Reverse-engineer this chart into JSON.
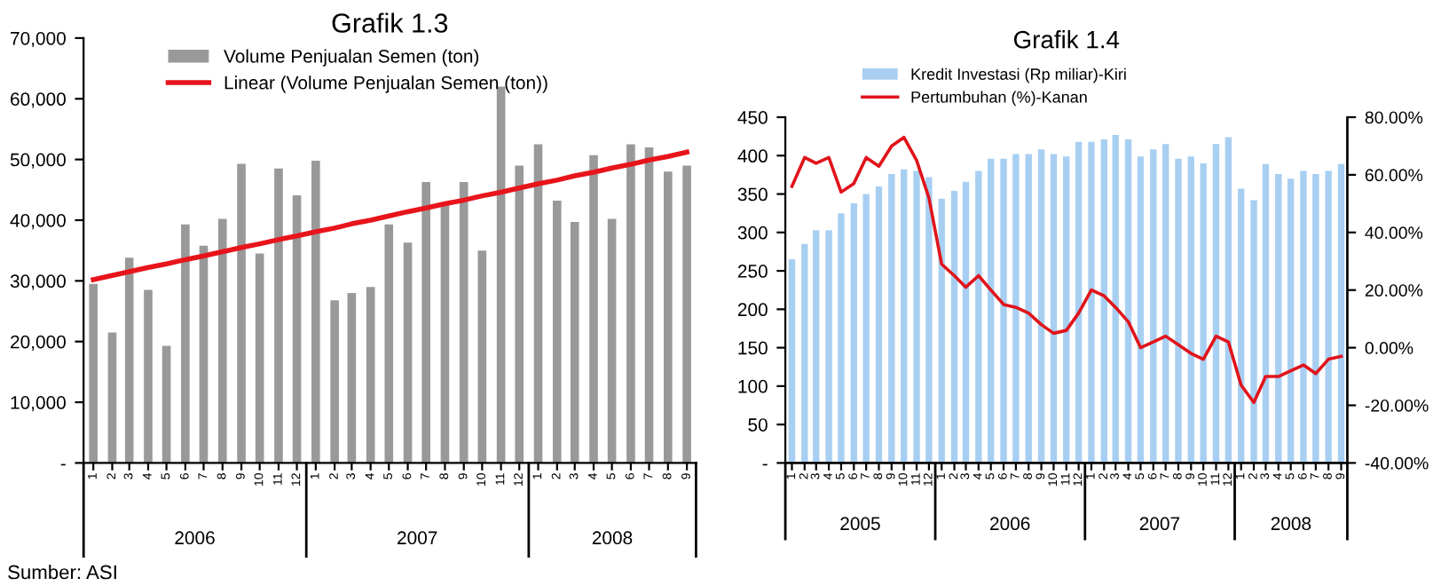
{
  "chart_data": [
    {
      "type": "bar",
      "title": "Grafik 1.3",
      "x": [
        "2006-01",
        "2006-02",
        "2006-03",
        "2006-04",
        "2006-05",
        "2006-06",
        "2006-07",
        "2006-08",
        "2006-09",
        "2006-10",
        "2006-11",
        "2006-12",
        "2007-01",
        "2007-02",
        "2007-03",
        "2007-04",
        "2007-05",
        "2007-06",
        "2007-07",
        "2007-08",
        "2007-09",
        "2007-10",
        "2007-11",
        "2007-12",
        "2008-01",
        "2008-02",
        "2008-03",
        "2008-04",
        "2008-05",
        "2008-06",
        "2008-07",
        "2008-08",
        "2008-09"
      ],
      "xlim": [
        "2005-12-16",
        "2008-09-16"
      ],
      "xticks": [
        {
          "value": "2006-01",
          "label": "1"
        },
        {
          "value": "2006-02",
          "label": "2"
        },
        {
          "value": "2006-03",
          "label": "3"
        },
        {
          "value": "2006-04",
          "label": "4"
        },
        {
          "value": "2006-05",
          "label": "5"
        },
        {
          "value": "2006-06",
          "label": "6"
        },
        {
          "value": "2006-07",
          "label": "7"
        },
        {
          "value": "2006-08",
          "label": "8"
        },
        {
          "value": "2006-09",
          "label": "9"
        },
        {
          "value": "2006-10",
          "label": "10"
        },
        {
          "value": "2006-11",
          "label": "11"
        },
        {
          "value": "2006-12",
          "label": "12"
        },
        {
          "value": "2007-01",
          "label": "1"
        },
        {
          "value": "2007-02",
          "label": "2"
        },
        {
          "value": "2007-03",
          "label": "3"
        },
        {
          "value": "2007-04",
          "label": "4"
        },
        {
          "value": "2007-05",
          "label": "5"
        },
        {
          "value": "2007-06",
          "label": "6"
        },
        {
          "value": "2007-07",
          "label": "7"
        },
        {
          "value": "2007-08",
          "label": "8"
        },
        {
          "value": "2007-09",
          "label": "9"
        },
        {
          "value": "2007-10",
          "label": "10"
        },
        {
          "value": "2007-11",
          "label": "11"
        },
        {
          "value": "2007-12",
          "label": "12"
        },
        {
          "value": "2008-01",
          "label": "1"
        },
        {
          "value": "2008-02",
          "label": "2"
        },
        {
          "value": "2008-03",
          "label": "3"
        },
        {
          "value": "2008-04",
          "label": "4"
        },
        {
          "value": "2008-05",
          "label": "5"
        },
        {
          "value": "2008-06",
          "label": "6"
        },
        {
          "value": "2008-07",
          "label": "7"
        },
        {
          "value": "2008-08",
          "label": "8"
        },
        {
          "value": "2008-09",
          "label": "9"
        }
      ],
      "ylim": [
        0,
        70000
      ],
      "yticks": [
        {
          "value": 0,
          "label": "-"
        },
        {
          "value": 10000,
          "label": "10,000"
        },
        {
          "value": 20000,
          "label": "20,000"
        },
        {
          "value": 30000,
          "label": "30,000"
        },
        {
          "value": 40000,
          "label": "40,000"
        },
        {
          "value": 50000,
          "label": "50,000"
        },
        {
          "value": 60000,
          "label": "60,000"
        },
        {
          "value": 70000,
          "label": "70,000"
        }
      ],
      "legend": "top left",
      "series": [
        {
          "name": "Volume Penjualan Semen (ton)",
          "color": "#999999",
          "values": [
            29500,
            21500,
            33800,
            28500,
            19300,
            39300,
            35800,
            40200,
            49300,
            34500,
            48500,
            44100,
            49800,
            26800,
            28000,
            29000,
            39300,
            36300,
            46300,
            42500,
            46300,
            35000,
            62000,
            49000,
            52500,
            43200,
            39700,
            50700,
            40200,
            52500,
            52000,
            48000,
            49000
          ]
        },
        {
          "name": "Linear (Volume Penjualan Semen (ton))",
          "type": "line",
          "color": "#e8141b",
          "values": [
            30200,
            30900,
            31500,
            32200,
            32800,
            33500,
            34100,
            34800,
            35500,
            36100,
            36800,
            37400,
            38100,
            38700,
            39400,
            40000,
            40700,
            41400,
            42000,
            42700,
            43300,
            44000,
            44600,
            45300,
            46000,
            46600,
            47300,
            47900,
            48600,
            49200,
            49900,
            50500,
            51200
          ]
        }
      ],
      "annotations": [
        "2006",
        "2007",
        "2008",
        "Sumber: ASI"
      ]
    },
    {
      "type": "bar",
      "title": "Grafik 1.4",
      "x": [
        "2005-01",
        "2005-02",
        "2005-03",
        "2005-04",
        "2005-05",
        "2005-06",
        "2005-07",
        "2005-08",
        "2005-09",
        "2005-10",
        "2005-11",
        "2005-12",
        "2006-01",
        "2006-02",
        "2006-03",
        "2006-04",
        "2006-05",
        "2006-06",
        "2006-07",
        "2006-08",
        "2006-09",
        "2006-10",
        "2006-11",
        "2006-12",
        "2007-01",
        "2007-02",
        "2007-03",
        "2007-04",
        "2007-05",
        "2007-06",
        "2007-07",
        "2007-08",
        "2007-09",
        "2007-10",
        "2007-11",
        "2007-12",
        "2008-01",
        "2008-02",
        "2008-03",
        "2008-04",
        "2008-05",
        "2008-06",
        "2008-07",
        "2008-08",
        "2008-09"
      ],
      "xlim": [
        "2004-12-16",
        "2008-09-16"
      ],
      "xticks": [
        {
          "value": "2005-01",
          "label": "1"
        },
        {
          "value": "2005-02",
          "label": "2"
        },
        {
          "value": "2005-03",
          "label": "3"
        },
        {
          "value": "2005-04",
          "label": "4"
        },
        {
          "value": "2005-05",
          "label": "5"
        },
        {
          "value": "2005-06",
          "label": "6"
        },
        {
          "value": "2005-07",
          "label": "7"
        },
        {
          "value": "2005-08",
          "label": "8"
        },
        {
          "value": "2005-09",
          "label": "9"
        },
        {
          "value": "2005-10",
          "label": "10"
        },
        {
          "value": "2005-11",
          "label": "11"
        },
        {
          "value": "2005-12",
          "label": "12"
        },
        {
          "value": "2006-01",
          "label": "1"
        },
        {
          "value": "2006-02",
          "label": "2"
        },
        {
          "value": "2006-03",
          "label": "3"
        },
        {
          "value": "2006-04",
          "label": "4"
        },
        {
          "value": "2006-05",
          "label": "5"
        },
        {
          "value": "2006-06",
          "label": "6"
        },
        {
          "value": "2006-07",
          "label": "7"
        },
        {
          "value": "2006-08",
          "label": "8"
        },
        {
          "value": "2006-09",
          "label": "9"
        },
        {
          "value": "2006-10",
          "label": "10"
        },
        {
          "value": "2006-11",
          "label": "11"
        },
        {
          "value": "2006-12",
          "label": "12"
        },
        {
          "value": "2007-01",
          "label": "1"
        },
        {
          "value": "2007-02",
          "label": "2"
        },
        {
          "value": "2007-03",
          "label": "3"
        },
        {
          "value": "2007-04",
          "label": "4"
        },
        {
          "value": "2007-05",
          "label": "5"
        },
        {
          "value": "2007-06",
          "label": "6"
        },
        {
          "value": "2007-07",
          "label": "7"
        },
        {
          "value": "2007-08",
          "label": "8"
        },
        {
          "value": "2007-09",
          "label": "9"
        },
        {
          "value": "2007-10",
          "label": "10"
        },
        {
          "value": "2007-11",
          "label": "11"
        },
        {
          "value": "2007-12",
          "label": "12"
        },
        {
          "value": "2008-01",
          "label": "1"
        },
        {
          "value": "2008-02",
          "label": "2"
        },
        {
          "value": "2008-03",
          "label": "3"
        },
        {
          "value": "2008-04",
          "label": "4"
        },
        {
          "value": "2008-05",
          "label": "5"
        },
        {
          "value": "2008-06",
          "label": "6"
        },
        {
          "value": "2008-07",
          "label": "7"
        },
        {
          "value": "2008-08",
          "label": "8"
        },
        {
          "value": "2008-09",
          "label": "9"
        }
      ],
      "ylim": [
        0,
        450
      ],
      "yticks": [
        {
          "value": 0,
          "label": "-"
        },
        50,
        100,
        150,
        200,
        250,
        300,
        350,
        400,
        450
      ],
      "y2lim": [
        -40,
        80
      ],
      "y2ticks": [
        {
          "value": -40,
          "label": "-40.00%"
        },
        {
          "value": -20,
          "label": "-20.00%"
        },
        {
          "value": 0,
          "label": "0.00%"
        },
        {
          "value": 20,
          "label": "20.00%"
        },
        {
          "value": 40,
          "label": "40.00%"
        },
        {
          "value": 60,
          "label": "60.00%"
        },
        {
          "value": 80,
          "label": "80.00%"
        }
      ],
      "legend": "top left",
      "series": [
        {
          "name": "Kredit Investasi (Rp miliar)-Kiri",
          "color": "#a8cff2",
          "values": [
            265,
            285,
            303,
            303,
            325,
            338,
            350,
            360,
            376,
            382,
            380,
            372,
            344,
            354,
            366,
            380,
            396,
            396,
            402,
            402,
            408,
            402,
            399,
            418,
            418,
            421,
            427,
            421,
            399,
            408,
            415,
            396,
            399,
            390,
            415,
            424,
            357,
            342,
            389,
            376,
            370,
            380,
            376,
            380,
            389
          ]
        },
        {
          "name": "Pertumbuhan (%)-Kanan",
          "type": "line",
          "axis": "y2",
          "color": "#e0141b",
          "values": [
            56,
            66,
            64,
            66,
            54,
            57,
            66,
            63,
            70,
            73,
            65,
            52,
            29,
            25,
            21,
            25,
            20,
            15,
            14,
            12,
            8,
            5,
            6,
            12,
            20,
            18,
            14,
            9,
            0,
            2,
            4,
            1,
            -2,
            -4,
            4,
            2,
            -13,
            -19,
            -10,
            -10,
            -8,
            -6,
            -9,
            -4,
            -3
          ]
        }
      ],
      "annotations": [
        "2005",
        "2006",
        "2007",
        "2008"
      ]
    }
  ]
}
